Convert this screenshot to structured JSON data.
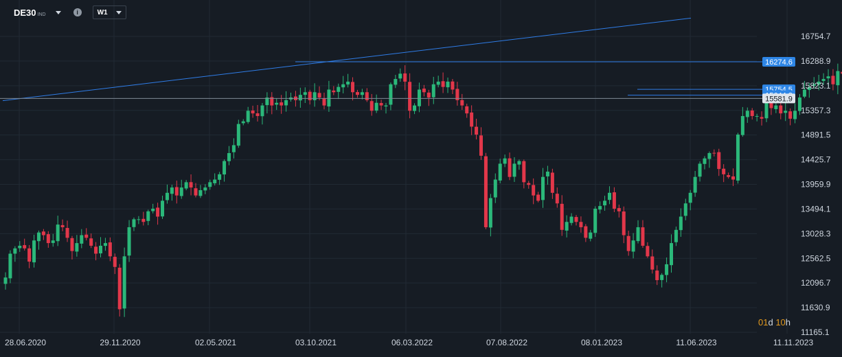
{
  "toolbar": {
    "symbol": "DE30",
    "symbol_suffix": "IND",
    "timeframe": "W1",
    "info_icon": "info-icon",
    "dropdown_icon": "chevron-down-icon"
  },
  "countdown": {
    "days": "01",
    "days_unit": "d",
    "hours": "10",
    "hours_unit": "h"
  },
  "colors": {
    "background": "#161c24",
    "grid": "#212a34",
    "up": "#2bb87a",
    "down": "#e2374a",
    "trendline": "#2f7de8",
    "badge": "#2e86e6",
    "last_price_badge": "#dfe5ec"
  },
  "chart_data": {
    "type": "candlestick",
    "x_tick_labels": [
      "28.06.2020",
      "29.11.2020",
      "02.05.2021",
      "03.10.2021",
      "06.03.2022",
      "07.08.2022",
      "08.01.2023",
      "11.06.2023",
      "11.11.2023"
    ],
    "y_tick_labels": [
      "16754.7",
      "16288.9",
      "15823.1",
      "15357.3",
      "14891.5",
      "14425.7",
      "13959.9",
      "13494.1",
      "13028.3",
      "12562.5",
      "12096.7",
      "11630.9",
      "11165.1"
    ],
    "ylim": [
      11165.1,
      16920
    ],
    "grid": true,
    "price_lines": [
      {
        "label": "16274.6",
        "value": 16274.6,
        "style": "badge"
      },
      {
        "label": "15754.5",
        "value": 15754.5,
        "style": "badge"
      },
      {
        "label": "15644.8",
        "value": 15644.8,
        "style": "badge"
      },
      {
        "label": "15581.9",
        "value": 15581.9,
        "style": "last"
      }
    ],
    "trendline": {
      "from": [
        "05.07.2020",
        15540
      ],
      "to": [
        "27.10.2024",
        17100
      ]
    },
    "closes": [
      12200,
      12650,
      12750,
      12800,
      12750,
      12500,
      12900,
      13050,
      13000,
      12850,
      12900,
      13200,
      13150,
      12950,
      12700,
      12850,
      13000,
      12950,
      12800,
      12650,
      12800,
      12850,
      12600,
      12400,
      11600,
      12600,
      13150,
      13300,
      13300,
      13250,
      13450,
      13500,
      13350,
      13650,
      13800,
      13900,
      13750,
      13900,
      14000,
      13900,
      13750,
      13850,
      13900,
      14000,
      14050,
      14150,
      14400,
      14550,
      14700,
      15100,
      15150,
      15350,
      15300,
      15250,
      15450,
      15600,
      15450,
      15500,
      15450,
      15550,
      15600,
      15550,
      15650,
      15700,
      15550,
      15700,
      15600,
      15450,
      15750,
      15700,
      15800,
      15850,
      15900,
      15700,
      15650,
      15700,
      15550,
      15350,
      15500,
      15450,
      15450,
      15850,
      15950,
      16050,
      15900,
      15350,
      15450,
      15750,
      15700,
      15600,
      15850,
      15900,
      15800,
      15900,
      15750,
      15550,
      15450,
      15300,
      15050,
      14900,
      14500,
      13150,
      13700,
      14050,
      14350,
      14450,
      14100,
      14350,
      14400,
      14000,
      13950,
      13750,
      13650,
      14100,
      14200,
      13800,
      13600,
      13100,
      13250,
      13350,
      13250,
      13150,
      12950,
      13050,
      13500,
      13550,
      13650,
      13800,
      13500,
      13450,
      13000,
      12700,
      12900,
      13150,
      12800,
      12600,
      12350,
      12150,
      12250,
      12450,
      12850,
      13100,
      13350,
      13600,
      13800,
      14100,
      14350,
      14450,
      14550,
      14550,
      14250,
      14150,
      14100,
      14050,
      14900,
      15250,
      15350,
      15250,
      15250,
      15200,
      15500,
      15400,
      15450,
      15300,
      15350,
      15200,
      15350,
      15600,
      15750,
      15800,
      15850,
      15900,
      15950,
      16000,
      15850,
      16100,
      16050,
      16150,
      15850,
      16150,
      16050,
      16250,
      16050,
      16100,
      15850,
      16250,
      16400,
      16400,
      16150,
      15950,
      15900,
      15730
    ]
  }
}
